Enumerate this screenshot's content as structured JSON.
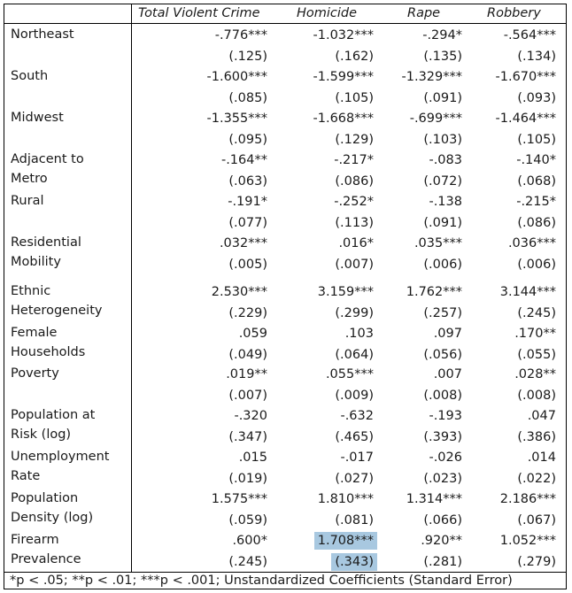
{
  "columns": [
    "Total Violent Crime",
    "Homicide",
    "Rape",
    "Robbery"
  ],
  "rows": [
    {
      "label": [
        "Northeast"
      ],
      "coef": [
        "-.776***",
        "-1.032***",
        "-.294*",
        "-.564***"
      ],
      "se": [
        "(.125)",
        "(.162)",
        "(.135)",
        "(.134)"
      ]
    },
    {
      "label": [
        "South"
      ],
      "coef": [
        "-1.600***",
        "-1.599***",
        "-1.329***",
        "-1.670***"
      ],
      "se": [
        "(.085)",
        "(.105)",
        "(.091)",
        "(.093)"
      ]
    },
    {
      "label": [
        "Midwest"
      ],
      "coef": [
        "-1.355***",
        "-1.668***",
        "-.699***",
        "-1.464***"
      ],
      "se": [
        "(.095)",
        "(.129)",
        "(.103)",
        "(.105)"
      ]
    },
    {
      "label": [
        "Adjacent to",
        "Metro"
      ],
      "coef": [
        "-.164**",
        "-.217*",
        "-.083",
        "-.140*"
      ],
      "se": [
        "(.063)",
        "(.086)",
        "(.072)",
        "(.068)"
      ]
    },
    {
      "label": [
        "Rural"
      ],
      "coef": [
        "-.191*",
        "-.252*",
        "-.138",
        "-.215*"
      ],
      "se": [
        "(.077)",
        "(.113)",
        "(.091)",
        "(.086)"
      ]
    },
    {
      "label": [
        "Residential",
        "Mobility"
      ],
      "coef": [
        ".032***",
        ".016*",
        ".035***",
        ".036***"
      ],
      "se": [
        "(.005)",
        "(.007)",
        "(.006)",
        "(.006)"
      ]
    },
    {
      "label": [
        "Ethnic",
        "Heterogeneity"
      ],
      "coef": [
        "2.530***",
        "3.159***",
        "1.762***",
        "3.144***"
      ],
      "se": [
        "(.229)",
        "(.299)",
        "(.257)",
        "(.245)"
      ]
    },
    {
      "label": [
        "Female",
        "Households"
      ],
      "coef": [
        ".059",
        ".103",
        ".097",
        ".170**"
      ],
      "se": [
        "(.049)",
        "(.064)",
        "(.056)",
        "(.055)"
      ]
    },
    {
      "label": [
        "Poverty"
      ],
      "coef": [
        ".019**",
        ".055***",
        ".007",
        ".028**"
      ],
      "se": [
        "(.007)",
        "(.009)",
        "(.008)",
        "(.008)"
      ]
    },
    {
      "label": [
        "Population at",
        "Risk (log)"
      ],
      "coef": [
        "-.320",
        "-.632",
        "-.193",
        ".047"
      ],
      "se": [
        "(.347)",
        "(.465)",
        "(.393)",
        "(.386)"
      ]
    },
    {
      "label": [
        "Unemployment",
        "Rate"
      ],
      "coef": [
        ".015",
        "-.017",
        "-.026",
        ".014"
      ],
      "se": [
        "(.019)",
        "(.027)",
        "(.023)",
        "(.022)"
      ]
    },
    {
      "label": [
        "Population",
        "Density (log)"
      ],
      "coef": [
        "1.575***",
        "1.810***",
        "1.314***",
        "2.186***"
      ],
      "se": [
        "(.059)",
        "(.081)",
        "(.066)",
        "(.067)"
      ]
    },
    {
      "label": [
        "Firearm",
        "Prevalence"
      ],
      "coef": [
        ".600*",
        "1.708***",
        ".920**",
        "1.052***"
      ],
      "se": [
        "(.245)",
        "(.343)",
        "(.281)",
        "(.279)"
      ]
    }
  ],
  "highlight": {
    "row": 12,
    "col": 1,
    "color": "#a8c8e0"
  },
  "footnote": "*p < .05; **p < .01; ***p < .001; Unstandardized Coefficients (Standard Error)"
}
